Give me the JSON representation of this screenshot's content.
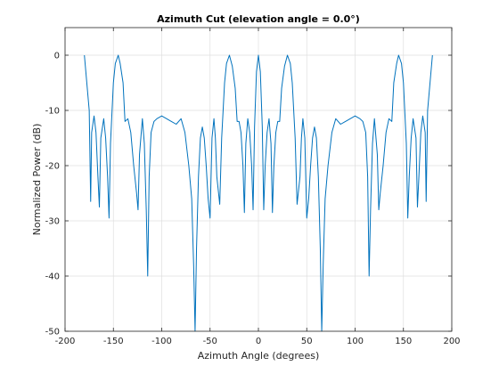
{
  "chart_data": {
    "type": "line",
    "title": "Azimuth Cut (elevation angle = 0.0°)",
    "xlabel": "Azimuth Angle (degrees)",
    "ylabel": "Normalized Power (dB)",
    "xlim": [
      -200,
      200
    ],
    "ylim": [
      -50,
      5
    ],
    "xticks": [
      -200,
      -150,
      -100,
      -50,
      0,
      50,
      100,
      150,
      200
    ],
    "yticks": [
      -50,
      -40,
      -30,
      -20,
      -10,
      0
    ],
    "xtick_labels": [
      "-200",
      "-150",
      "-100",
      "-50",
      "0",
      "50",
      "100",
      "150",
      "200"
    ],
    "ytick_labels": [
      "-50",
      "-40",
      "-30",
      "-20",
      "-10",
      "0"
    ],
    "grid": true,
    "series_color": "#0072BD",
    "series": [
      {
        "x": [
          -180,
          -175,
          -173.5,
          -172.5,
          -170,
          -168,
          -166,
          -164.5,
          -163,
          -160,
          -158,
          -156,
          -154.5,
          -153,
          -150,
          -148,
          -145,
          -143,
          -140,
          -138,
          -135,
          -132,
          -129,
          -126,
          -124.5,
          -123,
          -120,
          -118,
          -116,
          -114.5,
          -113,
          -111,
          -108,
          -105,
          -100,
          -95,
          -90,
          -85,
          -80,
          -76,
          -72,
          -69,
          -67,
          -65.5,
          -64,
          -62,
          -60,
          -58,
          -56,
          -54,
          -52,
          -50,
          -48,
          -46,
          -44.5,
          -43,
          -40,
          -38,
          -35,
          -33,
          -30,
          -27,
          -24,
          -22,
          -20,
          -18,
          -16,
          -14.5,
          -13,
          -11,
          -9,
          -7,
          -5.5,
          -4,
          -2,
          0,
          2,
          4,
          5.5,
          7,
          9,
          11,
          13,
          14.5,
          16,
          18,
          20,
          22,
          24,
          27,
          30,
          33,
          35,
          38,
          40,
          43,
          44.5,
          46,
          48,
          50,
          52,
          54,
          56,
          58,
          60,
          62,
          64,
          65.5,
          67,
          69,
          72,
          76,
          80,
          85,
          90,
          95,
          100,
          105,
          108,
          111,
          113,
          114.5,
          116,
          118,
          120,
          123,
          124.5,
          126,
          129,
          132,
          135,
          138,
          140,
          143,
          145,
          148,
          150,
          153,
          154.5,
          156,
          158,
          160,
          163,
          164.5,
          166,
          168,
          170,
          172.5,
          173.5,
          175,
          180
        ],
        "y": [
          0,
          -10,
          -26.5,
          -14,
          -11,
          -14,
          -22,
          -27.5,
          -15,
          -11.5,
          -15,
          -22,
          -29.5,
          -16,
          -5,
          -1.5,
          0,
          -1.5,
          -5,
          -12,
          -11.5,
          -14,
          -20,
          -25,
          -28,
          -18,
          -11.5,
          -16,
          -28,
          -40,
          -22,
          -14,
          -12,
          -11.5,
          -11,
          -11.5,
          -12,
          -12.5,
          -11.5,
          -14,
          -20,
          -26,
          -38,
          -50,
          -35,
          -22,
          -15,
          -13,
          -15,
          -20,
          -26,
          -29.5,
          -15,
          -11.5,
          -15,
          -22,
          -27,
          -15,
          -5,
          -1.5,
          0,
          -2,
          -6,
          -12,
          -12,
          -14,
          -20,
          -28.5,
          -16,
          -11.5,
          -14,
          -20,
          -28,
          -13,
          -3,
          0,
          -3,
          -13,
          -28,
          -20,
          -14,
          -11.5,
          -16,
          -28.5,
          -20,
          -14,
          -12,
          -12,
          -6,
          -2,
          0,
          -1.5,
          -5,
          -15,
          -27,
          -22,
          -15,
          -11.5,
          -15,
          -29.5,
          -26,
          -20,
          -15,
          -13,
          -15,
          -22,
          -35,
          -50,
          -38,
          -26,
          -20,
          -14,
          -11.5,
          -12.5,
          -12,
          -11.5,
          -11,
          -11.5,
          -12,
          -14,
          -22,
          -40,
          -28,
          -16,
          -11.5,
          -18,
          -28,
          -25,
          -20,
          -14,
          -11.5,
          -12,
          -5,
          -1.5,
          0,
          -1.5,
          -5,
          -16,
          -29.5,
          -22,
          -15,
          -11.5,
          -15,
          -27.5,
          -22,
          -14,
          -11,
          -14,
          -26.5,
          -10,
          0
        ]
      }
    ]
  }
}
